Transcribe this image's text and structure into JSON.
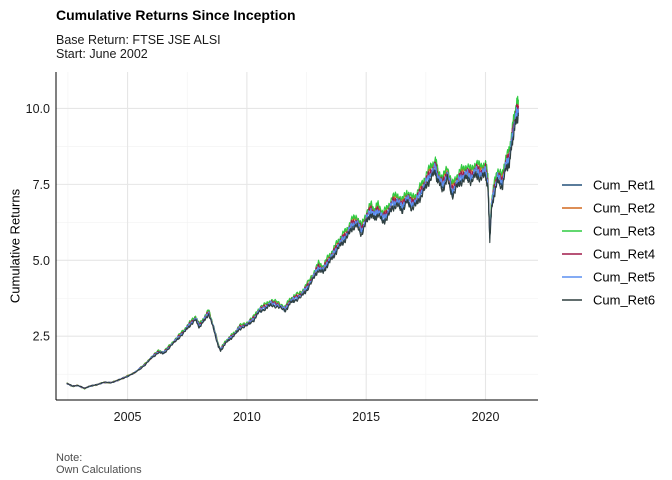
{
  "chart_data": {
    "type": "line",
    "title": "Cumulative Returns Since Inception",
    "subtitle_lines": [
      "Base Return: FTSE JSE ALSI",
      "Start: June 2002"
    ],
    "caption_lines": [
      "Note:",
      "Own Calculations"
    ],
    "xlabel": "",
    "ylabel": "Cumulative Returns",
    "xlim": [
      2002.0,
      2022.2
    ],
    "ylim": [
      0.4,
      11.2
    ],
    "x_ticks": [
      2005,
      2010,
      2015,
      2020
    ],
    "x_tick_labels": [
      "2005",
      "2010",
      "2015",
      "2020"
    ],
    "y_ticks": [
      2.5,
      5.0,
      7.5,
      10.0
    ],
    "y_tick_labels": [
      "2.5",
      "5.0",
      "7.5",
      "10.0"
    ],
    "grid": true,
    "legend_position": "right",
    "base_series": {
      "x": [
        2002.45,
        2002.7,
        2002.9,
        2003.2,
        2003.4,
        2003.7,
        2004.0,
        2004.3,
        2004.6,
        2004.9,
        2005.3,
        2005.7,
        2006.0,
        2006.3,
        2006.5,
        2006.8,
        2007.1,
        2007.4,
        2007.6,
        2007.85,
        2008.0,
        2008.2,
        2008.4,
        2008.6,
        2008.8,
        2008.9,
        2009.1,
        2009.3,
        2009.5,
        2009.7,
        2010.0,
        2010.3,
        2010.5,
        2010.8,
        2011.0,
        2011.3,
        2011.6,
        2011.8,
        2012.0,
        2012.3,
        2012.5,
        2012.8,
        2013.0,
        2013.2,
        2013.4,
        2013.6,
        2013.8,
        2014.0,
        2014.2,
        2014.4,
        2014.6,
        2014.8,
        2015.0,
        2015.2,
        2015.35,
        2015.5,
        2015.7,
        2015.9,
        2016.1,
        2016.3,
        2016.5,
        2016.7,
        2016.9,
        2017.1,
        2017.3,
        2017.5,
        2017.7,
        2017.9,
        2018.0,
        2018.2,
        2018.4,
        2018.6,
        2018.8,
        2019.0,
        2019.2,
        2019.4,
        2019.6,
        2019.8,
        2020.0,
        2020.1,
        2020.18,
        2020.25,
        2020.35,
        2020.5,
        2020.7,
        2020.85,
        2021.0,
        2021.1,
        2021.2,
        2021.3,
        2021.38
      ],
      "y": [
        0.95,
        0.85,
        0.88,
        0.78,
        0.85,
        0.9,
        0.98,
        0.97,
        1.05,
        1.15,
        1.3,
        1.55,
        1.8,
        2.0,
        1.95,
        2.2,
        2.45,
        2.7,
        2.9,
        3.1,
        2.85,
        3.05,
        3.3,
        2.8,
        2.2,
        2.05,
        2.3,
        2.45,
        2.6,
        2.8,
        2.9,
        3.1,
        3.35,
        3.5,
        3.6,
        3.55,
        3.4,
        3.65,
        3.75,
        3.9,
        4.1,
        4.5,
        4.8,
        4.7,
        5.0,
        5.2,
        5.5,
        5.7,
        5.9,
        6.2,
        6.3,
        6.0,
        6.4,
        6.7,
        6.5,
        6.7,
        6.4,
        6.6,
        6.9,
        7.0,
        6.8,
        7.1,
        6.9,
        7.0,
        7.3,
        7.6,
        7.9,
        8.1,
        7.8,
        7.5,
        7.9,
        7.3,
        7.6,
        7.8,
        7.9,
        7.8,
        8.0,
        7.9,
        8.0,
        7.6,
        5.8,
        6.8,
        7.3,
        7.8,
        7.6,
        8.2,
        8.4,
        9.0,
        9.5,
        9.9,
        10.0
      ]
    },
    "series": [
      {
        "name": "Cum_Ret1",
        "color": "#24507a",
        "scale": 0.985
      },
      {
        "name": "Cum_Ret2",
        "color": "#d2691e",
        "scale": 1.015
      },
      {
        "name": "Cum_Ret3",
        "color": "#2ecc40",
        "scale": 1.03
      },
      {
        "name": "Cum_Ret4",
        "color": "#a01a4a",
        "scale": 1.005
      },
      {
        "name": "Cum_Ret5",
        "color": "#5b8ff0",
        "scale": 0.995
      },
      {
        "name": "Cum_Ret6",
        "color": "#2f3f3f",
        "scale": 0.97
      }
    ]
  }
}
